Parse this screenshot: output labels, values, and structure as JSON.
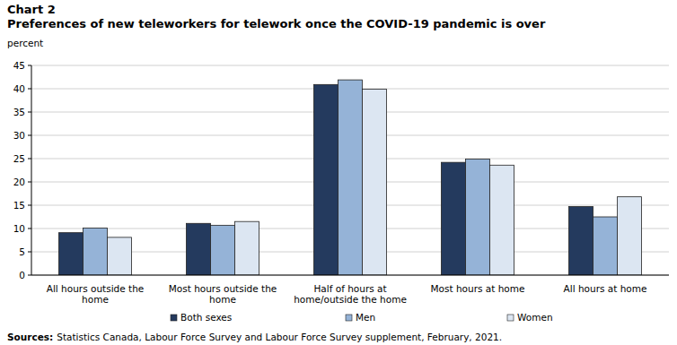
{
  "chart_data": {
    "type": "bar",
    "chart_number": "Chart 2",
    "title": "Preferences of new teleworkers for telework once the COVID-19 pandemic is over",
    "y_label": "percent",
    "source_label": "Sources:",
    "source": "Statistics Canada, Labour Force Survey and Labour Force Survey supplement, February, 2021.",
    "categories": [
      "All hours outside the home",
      "Most hours outside the home",
      "Half of hours at home/outside the home",
      "Most hours at home",
      "All hours at home"
    ],
    "series": [
      {
        "name": "Both sexes",
        "color": "#243a5e",
        "values": [
          9.1,
          11.1,
          40.9,
          24.2,
          14.7
        ]
      },
      {
        "name": "Men",
        "color": "#95b3d7",
        "values": [
          10.1,
          10.7,
          41.9,
          24.9,
          12.5
        ]
      },
      {
        "name": "Women",
        "color": "#dce6f2",
        "values": [
          8.1,
          11.5,
          39.9,
          23.6,
          16.8
        ]
      }
    ],
    "ylim": [
      0,
      45
    ],
    "yticks": [
      0,
      5,
      10,
      15,
      20,
      25,
      30,
      35,
      40,
      45
    ],
    "grid": true,
    "legend": "bottom"
  }
}
